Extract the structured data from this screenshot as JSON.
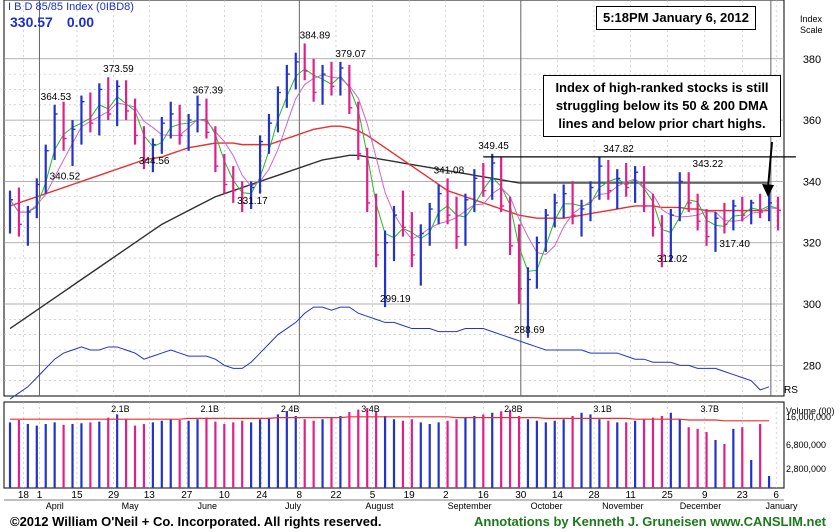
{
  "header": {
    "index_name": "I B D 85/85 Index  (0IBD8)",
    "last_value": "330.57",
    "change": "0.00",
    "timestamp": "5:18PM January 6, 2012",
    "scale_label_1": "Index",
    "scale_label_2": "Scale"
  },
  "annotation": {
    "line1": "Index of high-ranked stocks is still",
    "line2": "struggling below its 50 & 200 DMA",
    "line3": "lines and below prior chart highs."
  },
  "footer": {
    "copyright": "©2012 William O'Neil + Co. Incorporated. All rights reserved.",
    "credit": "Annotations by Kenneth J. Gruneisen www.CANSLIM.net"
  },
  "colors": {
    "up_bar": "#2233cc",
    "down_bar": "#e0208a",
    "ma50": "#e83030",
    "ma200": "#303030",
    "ma10": "#22bb22",
    "ma21": "#cc66cc",
    "rs": "#2233cc",
    "volume_avg": "#e83030"
  },
  "chart_data": {
    "type": "ohlc",
    "price_axis": {
      "ylim": [
        270,
        392
      ],
      "ticks": [
        280,
        300,
        320,
        340,
        360,
        380
      ]
    },
    "rs_label": "RS",
    "price_labels": [
      {
        "text": "364.53",
        "x": 5,
        "y": 365
      },
      {
        "text": "340.52",
        "x": 6,
        "y": 339
      },
      {
        "text": "373.59",
        "x": 12,
        "y": 374
      },
      {
        "text": "344.56",
        "x": 16,
        "y": 344
      },
      {
        "text": "367.39",
        "x": 22,
        "y": 367
      },
      {
        "text": "331.17",
        "x": 27,
        "y": 331
      },
      {
        "text": "384.89",
        "x": 34,
        "y": 385
      },
      {
        "text": "379.07",
        "x": 38,
        "y": 379
      },
      {
        "text": "299.19",
        "x": 43,
        "y": 299
      },
      {
        "text": "341.08",
        "x": 49,
        "y": 341
      },
      {
        "text": "349.45",
        "x": 54,
        "y": 349
      },
      {
        "text": "288.69",
        "x": 58,
        "y": 289
      },
      {
        "text": "347.82",
        "x": 68,
        "y": 348
      },
      {
        "text": "312.02",
        "x": 74,
        "y": 312
      },
      {
        "text": "343.22",
        "x": 78,
        "y": 343
      },
      {
        "text": "317.40",
        "x": 81,
        "y": 317
      }
    ],
    "resistance_line": {
      "from": 53,
      "to": 88,
      "y": 348
    },
    "bars": [
      {
        "o": 330,
        "h": 337,
        "l": 323,
        "c": 334
      },
      {
        "o": 334,
        "h": 338,
        "l": 322,
        "c": 326
      },
      {
        "o": 326,
        "h": 332,
        "l": 319,
        "c": 330
      },
      {
        "o": 330,
        "h": 341,
        "l": 328,
        "c": 339
      },
      {
        "o": 339,
        "h": 352,
        "l": 336,
        "c": 350
      },
      {
        "o": 350,
        "h": 365,
        "l": 347,
        "c": 362
      },
      {
        "o": 362,
        "h": 366,
        "l": 350,
        "c": 354
      },
      {
        "o": 354,
        "h": 360,
        "l": 345,
        "c": 357
      },
      {
        "o": 357,
        "h": 368,
        "l": 352,
        "c": 366
      },
      {
        "o": 366,
        "h": 369,
        "l": 356,
        "c": 359
      },
      {
        "o": 359,
        "h": 372,
        "l": 355,
        "c": 370
      },
      {
        "o": 370,
        "h": 374,
        "l": 360,
        "c": 362
      },
      {
        "o": 362,
        "h": 373,
        "l": 358,
        "c": 371
      },
      {
        "o": 371,
        "h": 373,
        "l": 360,
        "c": 363
      },
      {
        "o": 363,
        "h": 367,
        "l": 352,
        "c": 355
      },
      {
        "o": 355,
        "h": 358,
        "l": 344,
        "c": 347
      },
      {
        "o": 347,
        "h": 354,
        "l": 343,
        "c": 352
      },
      {
        "o": 352,
        "h": 361,
        "l": 349,
        "c": 359
      },
      {
        "o": 359,
        "h": 366,
        "l": 354,
        "c": 362
      },
      {
        "o": 362,
        "h": 365,
        "l": 352,
        "c": 355
      },
      {
        "o": 355,
        "h": 362,
        "l": 350,
        "c": 360
      },
      {
        "o": 360,
        "h": 368,
        "l": 356,
        "c": 365
      },
      {
        "o": 365,
        "h": 367,
        "l": 354,
        "c": 356
      },
      {
        "o": 356,
        "h": 358,
        "l": 343,
        "c": 345
      },
      {
        "o": 345,
        "h": 349,
        "l": 336,
        "c": 339
      },
      {
        "o": 339,
        "h": 345,
        "l": 333,
        "c": 337
      },
      {
        "o": 337,
        "h": 340,
        "l": 330,
        "c": 333
      },
      {
        "o": 333,
        "h": 340,
        "l": 331,
        "c": 338
      },
      {
        "o": 338,
        "h": 355,
        "l": 336,
        "c": 353
      },
      {
        "o": 353,
        "h": 362,
        "l": 349,
        "c": 359
      },
      {
        "o": 359,
        "h": 371,
        "l": 356,
        "c": 369
      },
      {
        "o": 369,
        "h": 378,
        "l": 364,
        "c": 375
      },
      {
        "o": 375,
        "h": 382,
        "l": 370,
        "c": 379
      },
      {
        "o": 379,
        "h": 385,
        "l": 373,
        "c": 376
      },
      {
        "o": 376,
        "h": 380,
        "l": 366,
        "c": 369
      },
      {
        "o": 369,
        "h": 378,
        "l": 365,
        "c": 375
      },
      {
        "o": 375,
        "h": 379,
        "l": 368,
        "c": 371
      },
      {
        "o": 371,
        "h": 379,
        "l": 368,
        "c": 377
      },
      {
        "o": 377,
        "h": 378,
        "l": 362,
        "c": 364
      },
      {
        "o": 364,
        "h": 366,
        "l": 347,
        "c": 349
      },
      {
        "o": 349,
        "h": 351,
        "l": 330,
        "c": 333
      },
      {
        "o": 333,
        "h": 336,
        "l": 312,
        "c": 316
      },
      {
        "o": 316,
        "h": 324,
        "l": 299,
        "c": 320
      },
      {
        "o": 320,
        "h": 332,
        "l": 314,
        "c": 329
      },
      {
        "o": 329,
        "h": 337,
        "l": 322,
        "c": 325
      },
      {
        "o": 325,
        "h": 330,
        "l": 312,
        "c": 316
      },
      {
        "o": 316,
        "h": 326,
        "l": 306,
        "c": 323
      },
      {
        "o": 323,
        "h": 333,
        "l": 319,
        "c": 331
      },
      {
        "o": 331,
        "h": 339,
        "l": 326,
        "c": 336
      },
      {
        "o": 336,
        "h": 341,
        "l": 326,
        "c": 329
      },
      {
        "o": 329,
        "h": 335,
        "l": 318,
        "c": 322
      },
      {
        "o": 322,
        "h": 336,
        "l": 319,
        "c": 334
      },
      {
        "o": 334,
        "h": 344,
        "l": 330,
        "c": 341
      },
      {
        "o": 341,
        "h": 346,
        "l": 335,
        "c": 337
      },
      {
        "o": 337,
        "h": 349,
        "l": 334,
        "c": 346
      },
      {
        "o": 346,
        "h": 348,
        "l": 330,
        "c": 332
      },
      {
        "o": 332,
        "h": 335,
        "l": 316,
        "c": 319
      },
      {
        "o": 319,
        "h": 326,
        "l": 300,
        "c": 305
      },
      {
        "o": 305,
        "h": 312,
        "l": 289,
        "c": 308
      },
      {
        "o": 308,
        "h": 322,
        "l": 305,
        "c": 320
      },
      {
        "o": 320,
        "h": 331,
        "l": 317,
        "c": 329
      },
      {
        "o": 329,
        "h": 336,
        "l": 325,
        "c": 333
      },
      {
        "o": 333,
        "h": 339,
        "l": 328,
        "c": 336
      },
      {
        "o": 336,
        "h": 340,
        "l": 326,
        "c": 329
      },
      {
        "o": 329,
        "h": 334,
        "l": 322,
        "c": 331
      },
      {
        "o": 331,
        "h": 340,
        "l": 327,
        "c": 338
      },
      {
        "o": 338,
        "h": 348,
        "l": 334,
        "c": 345
      },
      {
        "o": 345,
        "h": 347,
        "l": 334,
        "c": 337
      },
      {
        "o": 337,
        "h": 344,
        "l": 331,
        "c": 341
      },
      {
        "o": 341,
        "h": 346,
        "l": 335,
        "c": 338
      },
      {
        "o": 338,
        "h": 345,
        "l": 333,
        "c": 343
      },
      {
        "o": 343,
        "h": 345,
        "l": 330,
        "c": 332
      },
      {
        "o": 332,
        "h": 336,
        "l": 322,
        "c": 325
      },
      {
        "o": 325,
        "h": 329,
        "l": 312,
        "c": 316
      },
      {
        "o": 316,
        "h": 331,
        "l": 314,
        "c": 329
      },
      {
        "o": 329,
        "h": 343,
        "l": 327,
        "c": 340
      },
      {
        "o": 340,
        "h": 343,
        "l": 330,
        "c": 333
      },
      {
        "o": 333,
        "h": 336,
        "l": 324,
        "c": 327
      },
      {
        "o": 327,
        "h": 331,
        "l": 319,
        "c": 322
      },
      {
        "o": 322,
        "h": 330,
        "l": 317,
        "c": 328
      },
      {
        "o": 328,
        "h": 333,
        "l": 323,
        "c": 326
      },
      {
        "o": 326,
        "h": 334,
        "l": 324,
        "c": 332
      },
      {
        "o": 332,
        "h": 335,
        "l": 327,
        "c": 329
      },
      {
        "o": 329,
        "h": 334,
        "l": 326,
        "c": 333
      },
      {
        "o": 333,
        "h": 336,
        "l": 328,
        "c": 330
      },
      {
        "o": 330,
        "h": 339,
        "l": 327,
        "c": 333
      },
      {
        "o": 333,
        "h": 335,
        "l": 324,
        "c": 330.57
      }
    ],
    "ma50": [
      332,
      333,
      334,
      335,
      336,
      337,
      338,
      339,
      340,
      341,
      342,
      343,
      344,
      345,
      346,
      347,
      347.5,
      348,
      349,
      350,
      351,
      351.5,
      352,
      352.5,
      352.5,
      352.5,
      352,
      352,
      352,
      352,
      353,
      354,
      355,
      356,
      357,
      357.5,
      358,
      358,
      357.5,
      356.5,
      355,
      353,
      351,
      349,
      347,
      345,
      343,
      341,
      339,
      337,
      336,
      335,
      334,
      333,
      332,
      331,
      330,
      329,
      328.5,
      328,
      328,
      328,
      328,
      328.5,
      329,
      329.5,
      330,
      330.5,
      331,
      331.5,
      332,
      332,
      332,
      331.5,
      331.5,
      331.5,
      331,
      331,
      330.5,
      330.5,
      330.5,
      330.5,
      330.5,
      330.5,
      330.5,
      330.5
    ],
    "ma200": [
      292,
      294,
      296,
      298,
      300,
      302,
      304,
      306,
      308,
      310,
      312,
      314,
      316,
      318,
      320,
      322,
      324,
      326,
      327.5,
      329,
      330.5,
      332,
      333.5,
      335,
      336,
      337,
      338,
      339,
      340,
      341,
      342,
      343,
      344,
      345,
      346,
      347,
      347.5,
      348,
      348.5,
      348.5,
      348,
      347.5,
      347,
      346.5,
      346,
      345.5,
      345,
      344.5,
      344,
      343.5,
      343,
      342.5,
      342,
      341.5,
      341,
      340.5,
      340,
      339.5,
      339.5,
      339.5,
      339.5,
      339.5,
      339.5,
      339.5,
      339.5,
      339.5,
      339.5,
      339.5,
      339.5,
      339.5,
      339.5,
      339.5,
      339.5,
      339.5,
      339.5,
      339.5,
      339.5,
      339.5,
      339.5,
      339.5,
      339.5,
      339.5,
      339.5,
      339.5,
      339.5,
      339.5
    ],
    "rs": [
      269,
      271,
      273,
      276,
      279,
      282,
      284,
      285,
      286,
      285,
      285,
      286,
      286,
      285,
      284,
      282,
      283,
      284,
      285,
      284,
      283,
      283,
      283,
      282,
      280,
      279,
      279,
      281,
      284,
      287,
      290,
      292,
      294,
      297,
      299,
      299,
      298,
      299,
      299,
      297,
      296,
      295,
      294,
      294,
      293,
      292,
      292,
      292,
      291,
      291,
      291,
      292,
      292,
      292,
      291,
      290,
      289,
      288,
      287,
      286,
      285,
      285,
      285,
      285,
      285,
      284,
      284,
      284,
      284,
      283,
      282,
      282,
      281,
      281,
      281,
      280,
      280,
      279,
      279,
      279,
      278,
      277,
      276,
      275,
      272,
      273
    ],
    "volume": {
      "ticks": [
        "16,000,000",
        "6,800,000",
        "2,800,000"
      ],
      "axis_label": "Volume (00)",
      "labels": [
        {
          "text": "2.1B",
          "x": 12
        },
        {
          "text": "2.1B",
          "x": 22
        },
        {
          "text": "2.4B",
          "x": 31
        },
        {
          "text": "3.4B",
          "x": 40
        },
        {
          "text": "2.8B",
          "x": 56
        },
        {
          "text": "3.1B",
          "x": 66
        },
        {
          "text": "3.7B",
          "x": 78
        }
      ],
      "values": [
        0.82,
        0.85,
        0.8,
        0.78,
        0.8,
        0.82,
        0.79,
        0.8,
        0.81,
        0.82,
        0.83,
        0.88,
        0.92,
        0.86,
        0.78,
        0.8,
        0.82,
        0.84,
        0.86,
        0.85,
        0.84,
        0.86,
        0.88,
        0.83,
        0.8,
        0.82,
        0.84,
        0.82,
        0.86,
        0.88,
        0.92,
        0.96,
        0.9,
        0.86,
        0.84,
        0.86,
        0.88,
        0.9,
        0.95,
        0.98,
        1.0,
        0.96,
        0.9,
        0.86,
        0.84,
        0.86,
        0.82,
        0.8,
        0.82,
        0.84,
        0.86,
        0.88,
        0.9,
        0.92,
        0.94,
        0.96,
        0.98,
        0.9,
        0.86,
        0.84,
        0.82,
        0.84,
        0.86,
        0.9,
        0.94,
        0.92,
        0.86,
        0.84,
        0.82,
        0.82,
        0.84,
        0.86,
        0.88,
        0.9,
        0.94,
        0.86,
        0.76,
        0.74,
        0.7,
        0.6,
        0.55,
        0.74,
        0.76,
        0.35,
        0.8,
        0.15
      ],
      "avg": [
        0.86,
        0.86,
        0.86,
        0.86,
        0.86,
        0.86,
        0.86,
        0.86,
        0.86,
        0.86,
        0.86,
        0.86,
        0.86,
        0.86,
        0.86,
        0.86,
        0.86,
        0.86,
        0.86,
        0.86,
        0.87,
        0.87,
        0.87,
        0.87,
        0.87,
        0.87,
        0.87,
        0.87,
        0.87,
        0.87,
        0.88,
        0.88,
        0.88,
        0.88,
        0.88,
        0.88,
        0.88,
        0.88,
        0.89,
        0.89,
        0.89,
        0.89,
        0.89,
        0.89,
        0.89,
        0.89,
        0.89,
        0.89,
        0.89,
        0.89,
        0.88,
        0.88,
        0.88,
        0.88,
        0.88,
        0.88,
        0.88,
        0.88,
        0.88,
        0.88,
        0.87,
        0.87,
        0.87,
        0.87,
        0.87,
        0.87,
        0.87,
        0.87,
        0.87,
        0.87,
        0.86,
        0.86,
        0.86,
        0.86,
        0.86,
        0.86,
        0.85,
        0.85,
        0.85,
        0.85,
        0.84,
        0.84,
        0.84,
        0.84,
        0.84,
        0.84
      ]
    },
    "x_axis": {
      "day_ticks": [
        {
          "text": "18",
          "x": 1.5
        },
        {
          "text": "1",
          "x": 3.3
        },
        {
          "text": "15",
          "x": 7.5
        },
        {
          "text": "29",
          "x": 11.6
        },
        {
          "text": "13",
          "x": 15.6
        },
        {
          "text": "27",
          "x": 19.8
        },
        {
          "text": "10",
          "x": 24.0
        },
        {
          "text": "24",
          "x": 28.2
        },
        {
          "text": "8",
          "x": 32.4
        },
        {
          "text": "22",
          "x": 36.5
        },
        {
          "text": "5",
          "x": 40.6
        },
        {
          "text": "19",
          "x": 44.7
        },
        {
          "text": "2",
          "x": 48.8
        },
        {
          "text": "16",
          "x": 53.0
        },
        {
          "text": "30",
          "x": 57.2
        },
        {
          "text": "14",
          "x": 61.3
        },
        {
          "text": "28",
          "x": 65.4
        },
        {
          "text": "11",
          "x": 69.5
        },
        {
          "text": "25",
          "x": 73.6
        },
        {
          "text": "9",
          "x": 77.8
        },
        {
          "text": "23",
          "x": 82.0
        },
        {
          "text": "6",
          "x": 85.8
        }
      ],
      "months": [
        {
          "text": "April",
          "x": 4.0
        },
        {
          "text": "May",
          "x": 12.5
        },
        {
          "text": "June",
          "x": 21.0
        },
        {
          "text": "July",
          "x": 30.8
        },
        {
          "text": "August",
          "x": 39.8
        },
        {
          "text": "September",
          "x": 49.0
        },
        {
          "text": "October",
          "x": 58.3
        },
        {
          "text": "November",
          "x": 66.3
        },
        {
          "text": "December",
          "x": 75.0
        },
        {
          "text": "January",
          "x": 84.6
        }
      ]
    }
  }
}
